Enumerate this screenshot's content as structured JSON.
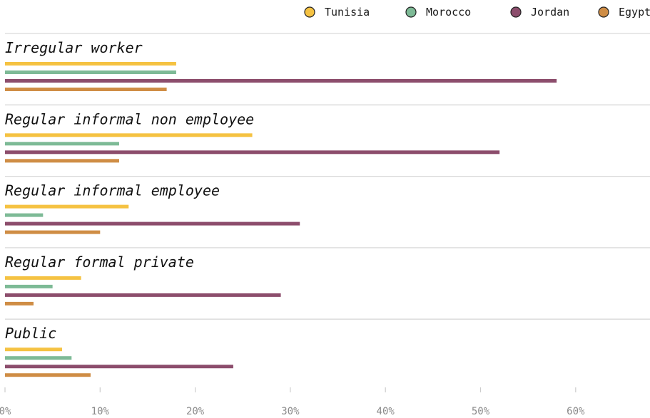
{
  "chart_data": {
    "type": "bar",
    "orientation": "horizontal",
    "categories": [
      "Irregular worker",
      "Regular informal non employee",
      "Regular informal employee",
      "Regular formal private",
      "Public"
    ],
    "series": [
      {
        "name": "Tunisia",
        "color": "#f5c242",
        "values": [
          18,
          26,
          13,
          8,
          6
        ]
      },
      {
        "name": "Morocco",
        "color": "#7dba96",
        "values": [
          18,
          12,
          4,
          5,
          7
        ]
      },
      {
        "name": "Jordan",
        "color": "#8c4d6c",
        "values": [
          58,
          52,
          31,
          29,
          24
        ]
      },
      {
        "name": "Egypt",
        "color": "#cf8d45",
        "values": [
          17,
          12,
          10,
          3,
          9
        ]
      }
    ],
    "xticks": [
      0,
      10,
      20,
      30,
      40,
      50,
      60
    ],
    "xtick_labels": [
      "0%",
      "10%",
      "20%",
      "30%",
      "40%",
      "50%",
      "60%"
    ],
    "xlim": [
      0,
      68
    ],
    "legend_position": "top-right",
    "grid": false
  }
}
